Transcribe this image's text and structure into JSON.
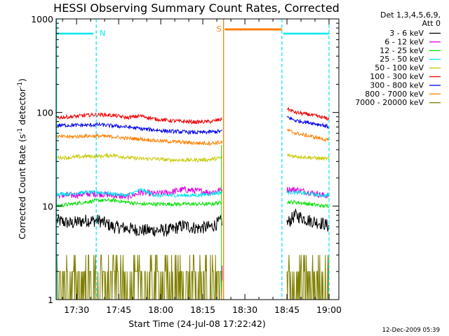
{
  "chart_data": {
    "type": "line",
    "title": "HESSI Observing Summary Count Rates, Corrected",
    "xlabel": "Start Time (24-Jul-08 17:22:42)",
    "ylabel": "Corrected Count Rate (s",
    "ylabel_sup": "-1",
    "ylabel_mid": " detector",
    "ylabel_end": ")",
    "x_tick_labels": [
      "17:30",
      "17:45",
      "18:00",
      "18:15",
      "18:30",
      "18:45",
      "19:00"
    ],
    "x_tick_minutes": [
      450,
      465,
      480,
      495,
      510,
      525,
      540
    ],
    "xlim_minutes": [
      442.7,
      543.5
    ],
    "y_scale": "log",
    "y_tick_labels": [
      "1",
      "10",
      "100",
      "1000"
    ],
    "y_tick_values": [
      1,
      10,
      100,
      1000
    ],
    "ylim": [
      1,
      1000
    ],
    "legend_header": [
      "Det 1,3,4,5,6,9,",
      "Att 0"
    ],
    "legend_placement": "right",
    "footer_date": "12-Dec-2009 05:39",
    "markers": [
      {
        "label": "N",
        "color": "#00e5ee",
        "x_start": 442.7,
        "x_end": 457.0,
        "x_end2": 523.2,
        "x_end3": 540.0
      },
      {
        "label": "S",
        "color": "#ff7f00",
        "x_start": 502.4,
        "x_end": 523.2
      }
    ],
    "data_gaps": [
      [
        502.4,
        523.2
      ]
    ],
    "dashed_vlines_minutes": [
      457.0,
      523.2,
      540.0
    ],
    "solid_vlines_minutes": [
      502.4
    ],
    "series": [
      {
        "name": "3 - 6 keV",
        "color": "#000000",
        "x": [
          443,
          448,
          453,
          458,
          463,
          468,
          473,
          478,
          483,
          488,
          493,
          498,
          502,
          525,
          528,
          533,
          538,
          540
        ],
        "y": [
          7,
          6.5,
          7,
          7,
          6,
          5.8,
          5.5,
          5.5,
          5.5,
          6.2,
          5.8,
          6,
          7,
          6.5,
          8,
          7,
          6.5,
          6
        ]
      },
      {
        "name": "6 - 12 keV",
        "color": "#e000e0",
        "x": [
          443,
          448,
          453,
          458,
          463,
          468,
          473,
          478,
          483,
          488,
          493,
          498,
          502,
          525,
          528,
          533,
          538,
          540
        ],
        "y": [
          13,
          13,
          13.5,
          13.5,
          13,
          12.5,
          14,
          13.5,
          14,
          15,
          14.5,
          14,
          15,
          15,
          15,
          14,
          13,
          13
        ]
      },
      {
        "name": "12 - 25 keV",
        "color": "#00e000",
        "x": [
          443,
          448,
          453,
          458,
          463,
          468,
          473,
          478,
          483,
          488,
          493,
          498,
          502,
          525,
          528,
          533,
          538,
          540
        ],
        "y": [
          10,
          10.5,
          11,
          11.5,
          11.5,
          11,
          10.5,
          10.5,
          10.5,
          10.5,
          10.5,
          10.5,
          11,
          11,
          11,
          10.5,
          10,
          10
        ]
      },
      {
        "name": "25 - 50 keV",
        "color": "#00e5ee",
        "x": [
          443,
          448,
          453,
          458,
          463,
          468,
          473,
          478,
          483,
          488,
          493,
          498,
          502,
          525,
          528,
          533,
          538,
          540
        ],
        "y": [
          13.5,
          13.5,
          14,
          14,
          13.5,
          13,
          15,
          13,
          13,
          13,
          13,
          13.5,
          14,
          14,
          14,
          13.5,
          13,
          13
        ]
      },
      {
        "name": "50 - 100 keV",
        "color": "#c8c800",
        "x": [
          443,
          448,
          453,
          458,
          463,
          468,
          473,
          478,
          483,
          488,
          493,
          498,
          502,
          525,
          528,
          533,
          538,
          540
        ],
        "y": [
          33,
          33,
          34,
          34,
          35,
          33,
          32,
          32,
          31,
          31,
          31,
          31.5,
          33,
          35,
          34,
          33,
          32,
          32
        ]
      },
      {
        "name": "100 - 300 keV",
        "color": "#ee0000",
        "x": [
          443,
          448,
          453,
          458,
          463,
          468,
          473,
          478,
          483,
          488,
          493,
          498,
          502,
          525,
          528,
          533,
          538,
          540
        ],
        "y": [
          88,
          90,
          93,
          95,
          93,
          88,
          92,
          85,
          82,
          80,
          79,
          80,
          85,
          110,
          100,
          95,
          88,
          85
        ]
      },
      {
        "name": "300 - 800 keV",
        "color": "#0000ee",
        "x": [
          443,
          448,
          453,
          458,
          463,
          468,
          473,
          478,
          483,
          488,
          493,
          498,
          502,
          525,
          528,
          533,
          538,
          540
        ],
        "y": [
          73,
          73,
          73,
          74,
          72,
          70,
          67,
          65,
          63,
          62,
          61,
          62,
          63,
          90,
          82,
          78,
          73,
          70
        ]
      },
      {
        "name": "800 - 7000 keV",
        "color": "#ff7f00",
        "x": [
          443,
          448,
          453,
          458,
          463,
          468,
          473,
          478,
          483,
          488,
          493,
          498,
          502,
          525,
          528,
          533,
          538,
          540
        ],
        "y": [
          55,
          55,
          56,
          56,
          55,
          53,
          52,
          50,
          49,
          48,
          47,
          47,
          48,
          65,
          60,
          56,
          52,
          50
        ]
      },
      {
        "name": "7000 - 20000 keV",
        "color": "#808000",
        "x": [
          443,
          448,
          453,
          458,
          463,
          468,
          473,
          478,
          483,
          488,
          493,
          498,
          502,
          525,
          528,
          533,
          538,
          540
        ],
        "y": [
          1.5,
          1.5,
          1.6,
          1.6,
          1.5,
          1.5,
          1.5,
          1.5,
          1.5,
          1.5,
          1.5,
          1.5,
          1.5,
          1.6,
          1.6,
          1.5,
          1.5,
          1.5
        ]
      }
    ]
  }
}
